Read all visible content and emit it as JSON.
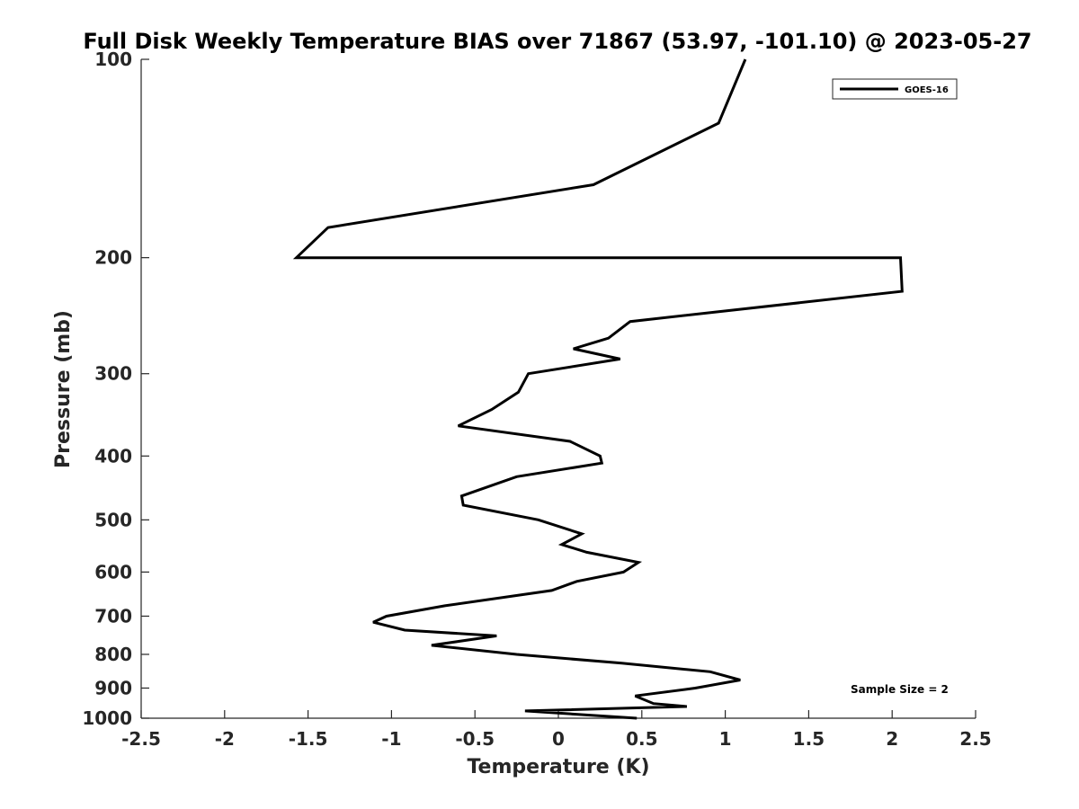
{
  "chart_data": {
    "type": "line",
    "title": "Full Disk Weekly Temperature BIAS over 71867 (53.97, -101.10) @ 2023-05-27",
    "xlabel": "Temperature (K)",
    "ylabel": "Pressure (mb)",
    "xlim": [
      -2.5,
      2.5
    ],
    "ylim": [
      100,
      1000
    ],
    "y_scale": "log",
    "y_reversed": true,
    "grid": false,
    "legend_position": "top-right",
    "x_ticks": [
      "-2.5",
      "-2",
      "-1.5",
      "-1",
      "-0.5",
      "0",
      "0.5",
      "1",
      "1.5",
      "2",
      "2.5"
    ],
    "x_tick_values": [
      -2.5,
      -2,
      -1.5,
      -1,
      -0.5,
      0,
      0.5,
      1,
      1.5,
      2,
      2.5
    ],
    "y_ticks": [
      "100",
      "200",
      "300",
      "400",
      "500",
      "600",
      "700",
      "800",
      "900",
      "1000"
    ],
    "y_tick_values": [
      100,
      200,
      300,
      400,
      500,
      600,
      700,
      800,
      900,
      1000
    ],
    "annotation": "Sample Size = 2",
    "series": [
      {
        "name": "GOES-16",
        "color": "#000000",
        "points": [
          {
            "t": 1.12,
            "p": 100
          },
          {
            "t": 0.96,
            "p": 125
          },
          {
            "t": 0.21,
            "p": 155
          },
          {
            "t": -1.38,
            "p": 180
          },
          {
            "t": -1.57,
            "p": 200
          },
          {
            "t": 2.05,
            "p": 200
          },
          {
            "t": 2.06,
            "p": 225
          },
          {
            "t": 0.43,
            "p": 250
          },
          {
            "t": 0.3,
            "p": 265
          },
          {
            "t": 0.09,
            "p": 275
          },
          {
            "t": 0.37,
            "p": 285
          },
          {
            "t": -0.18,
            "p": 300
          },
          {
            "t": -0.24,
            "p": 320
          },
          {
            "t": -0.4,
            "p": 340
          },
          {
            "t": -0.6,
            "p": 360
          },
          {
            "t": 0.07,
            "p": 380
          },
          {
            "t": 0.25,
            "p": 400
          },
          {
            "t": 0.26,
            "p": 410
          },
          {
            "t": -0.25,
            "p": 430
          },
          {
            "t": -0.58,
            "p": 460
          },
          {
            "t": -0.57,
            "p": 475
          },
          {
            "t": -0.12,
            "p": 500
          },
          {
            "t": 0.14,
            "p": 525
          },
          {
            "t": 0.02,
            "p": 545
          },
          {
            "t": 0.17,
            "p": 560
          },
          {
            "t": 0.48,
            "p": 580
          },
          {
            "t": 0.39,
            "p": 600
          },
          {
            "t": 0.11,
            "p": 620
          },
          {
            "t": -0.04,
            "p": 640
          },
          {
            "t": -0.68,
            "p": 675
          },
          {
            "t": -1.03,
            "p": 700
          },
          {
            "t": -1.11,
            "p": 715
          },
          {
            "t": -0.92,
            "p": 735
          },
          {
            "t": -0.37,
            "p": 750
          },
          {
            "t": -0.76,
            "p": 775
          },
          {
            "t": -0.25,
            "p": 800
          },
          {
            "t": 0.38,
            "p": 825
          },
          {
            "t": 0.91,
            "p": 850
          },
          {
            "t": 1.09,
            "p": 875
          },
          {
            "t": 0.82,
            "p": 900
          },
          {
            "t": 0.46,
            "p": 925
          },
          {
            "t": 0.57,
            "p": 950
          },
          {
            "t": 0.77,
            "p": 960
          },
          {
            "t": -0.2,
            "p": 975
          },
          {
            "t": 0.47,
            "p": 1000
          }
        ]
      }
    ]
  }
}
